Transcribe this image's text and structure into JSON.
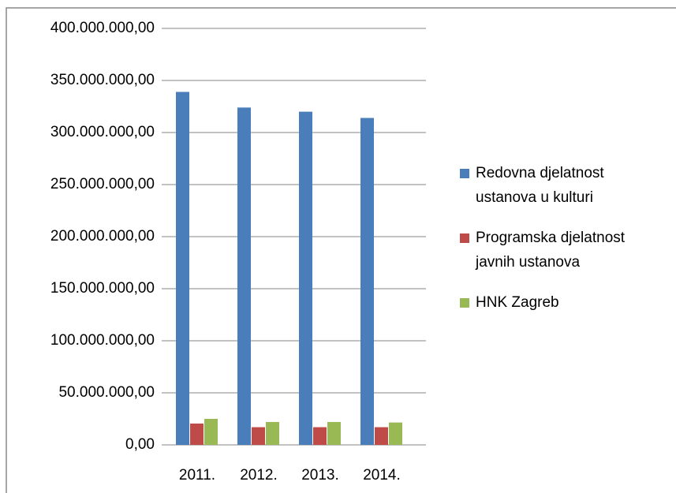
{
  "chart_data": {
    "type": "bar",
    "categories": [
      "2011.",
      "2012.",
      "2013.",
      "2014."
    ],
    "series": [
      {
        "name": "Redovna djelatnost ustanova u kulturi",
        "color": "#4a7ebb",
        "values": [
          339000000,
          324000000,
          320000000,
          314000000
        ]
      },
      {
        "name": "Programska djelatnost javnih ustanova",
        "color": "#be4b48",
        "values": [
          20500000,
          17000000,
          17000000,
          17000000
        ]
      },
      {
        "name": "HNK Zagreb",
        "color": "#98b954",
        "values": [
          25000000,
          22000000,
          22000000,
          21500000
        ]
      }
    ],
    "ylim": [
      0,
      400000000
    ],
    "yticks": [
      {
        "value": 0,
        "label": "0,00"
      },
      {
        "value": 50000000,
        "label": "50.000.000,00"
      },
      {
        "value": 100000000,
        "label": "100.000.000,00"
      },
      {
        "value": 150000000,
        "label": "150.000.000,00"
      },
      {
        "value": 200000000,
        "label": "200.000.000,00"
      },
      {
        "value": 250000000,
        "label": "250.000.000,00"
      },
      {
        "value": 300000000,
        "label": "300.000.000,00"
      },
      {
        "value": 350000000,
        "label": "350.000.000,00"
      },
      {
        "value": 400000000,
        "label": "400.000.000,00"
      }
    ],
    "grid": true,
    "legend": "right"
  }
}
